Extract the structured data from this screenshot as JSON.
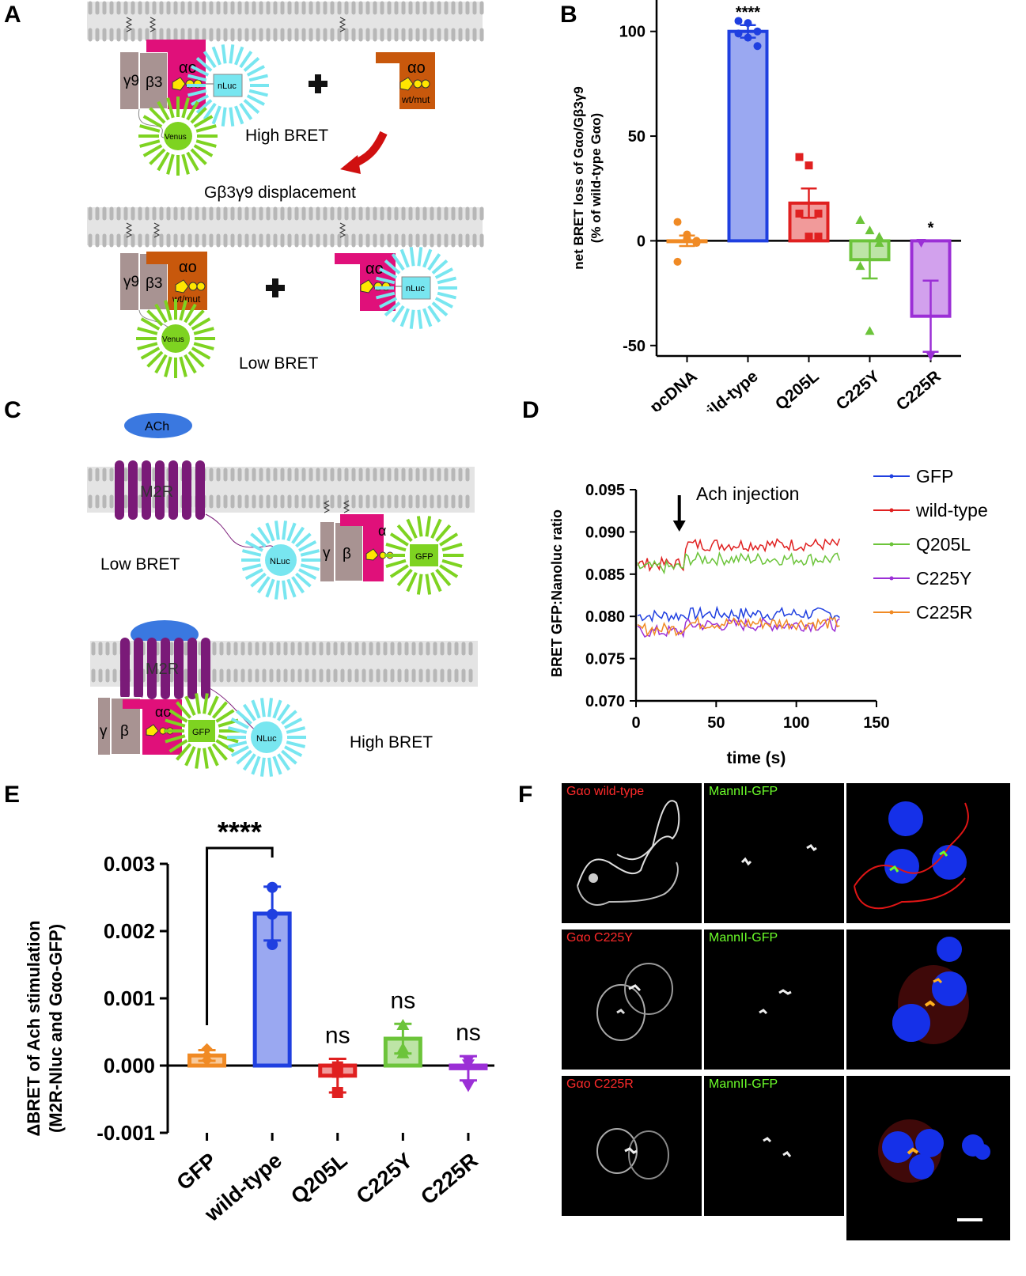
{
  "panels": {
    "A": "A",
    "B": "B",
    "C": "C",
    "D": "D",
    "E": "E",
    "F": "F"
  },
  "diagramA": {
    "gamma": "γ9",
    "beta": "β3",
    "alpha": "αo",
    "nluc": "nLuc",
    "venus": "Venus",
    "wtmut": "wt/mut",
    "high": "High BRET",
    "displacement": "Gβ3γ9 displacement",
    "low": "Low BRET"
  },
  "diagramC": {
    "ach": "ACh",
    "m2r": "M2R",
    "nluc": "NLuc",
    "nluc2": "NLuc",
    "gfp": "GFP",
    "gamma": "γ",
    "beta": "β",
    "alpha": "α",
    "alphao": "αo",
    "low": "Low BRET",
    "high": "High BRET"
  },
  "colors": {
    "pcDNA": "#f08a24",
    "wild-type": "#1f3fe0",
    "Q205L": "#e02020",
    "C225Y": "#6cc43a",
    "C225R": "#9b2fd6",
    "GFP_line": "#1f3fe0",
    "membrane": "#c8c8c8",
    "gammabeta": "#a89392",
    "alpha": "#e0107a",
    "alpha_mut": "#c8580c",
    "nluc": "#78e6f0",
    "venus": "#7ed321",
    "m2r": "#7a1a78"
  },
  "chart_data": [
    {
      "id": "B",
      "type": "bar",
      "ylabel": "net BRET loss of Gαo/Gβ3γ9",
      "ylabel2": "(% of wild-type Gαo)",
      "ylim": [
        -55,
        115
      ],
      "yticks": [
        -50,
        0,
        50,
        100
      ],
      "categories": [
        "pcDNA",
        "wild-type",
        "Q205L",
        "C225Y",
        "C225R"
      ],
      "values": [
        0,
        100,
        18,
        -9,
        -36
      ],
      "errors": [
        2.5,
        3,
        7,
        9,
        17
      ],
      "points": [
        [
          9,
          3,
          -1,
          -10,
          1,
          0
        ],
        [
          105,
          104,
          100,
          99,
          97,
          93
        ],
        [
          40,
          36,
          13,
          13,
          2,
          2
        ],
        [
          10,
          5,
          2,
          -12,
          -43,
          -1
        ],
        [
          -1,
          -55
        ]
      ],
      "significance": [
        "",
        "****",
        "",
        "",
        "*"
      ]
    },
    {
      "id": "D",
      "type": "line",
      "xlabel": "time (s)",
      "ylabel": "BRET GFP:Nanoluc ratio",
      "xlim": [
        0,
        150
      ],
      "ylim": [
        0.07,
        0.095
      ],
      "xticks": [
        0,
        50,
        100,
        150
      ],
      "yticks": [
        0.07,
        0.075,
        0.08,
        0.085,
        0.09,
        0.095
      ],
      "annotation": "Ach injection",
      "annotation_x": 27,
      "series": [
        {
          "name": "GFP",
          "base": 0.0801,
          "after": 0.0803
        },
        {
          "name": "wild-type",
          "base": 0.0862,
          "after": 0.0885
        },
        {
          "name": "Q205L",
          "base": 0.0858,
          "after": 0.0868
        },
        {
          "name": "C225Y",
          "base": 0.0782,
          "after": 0.079
        },
        {
          "name": "C225R",
          "base": 0.0785,
          "after": 0.0792
        }
      ]
    },
    {
      "id": "E",
      "type": "bar",
      "ylabel": "ΔBRET of  Ach stimulation",
      "ylabel2": "(M2R-Nluc and Gαo-GFP)",
      "ylim": [
        -0.001,
        0.003
      ],
      "yticks": [
        "-0.001",
        "0.000",
        "0.001",
        "0.002",
        "0.003"
      ],
      "categories": [
        "GFP",
        "wild-type",
        "Q205L",
        "C225Y",
        "C225R"
      ],
      "values": [
        0.00015,
        0.00226,
        -0.00015,
        0.0004,
        -4e-05
      ],
      "errors": [
        8e-05,
        0.0004,
        0.00025,
        0.00022,
        0.00018
      ],
      "points": [
        [
          0.00025,
          0.00015,
          8e-05
        ],
        [
          0.00265,
          0.00225,
          0.0018
        ],
        [
          -0.0004,
          -0.0001,
          -2e-05
        ],
        [
          0.0006,
          0.00025,
          0.00018
        ],
        [
          -0.0003,
          2e-05,
          8e-05
        ]
      ],
      "significance": [
        "",
        "****",
        "ns",
        "ns",
        "ns"
      ]
    }
  ],
  "microscopy": {
    "rows": [
      "Gαo wild-type",
      "Gαo C225Y",
      "Gαo C225R"
    ],
    "green": "MannII-GFP"
  }
}
